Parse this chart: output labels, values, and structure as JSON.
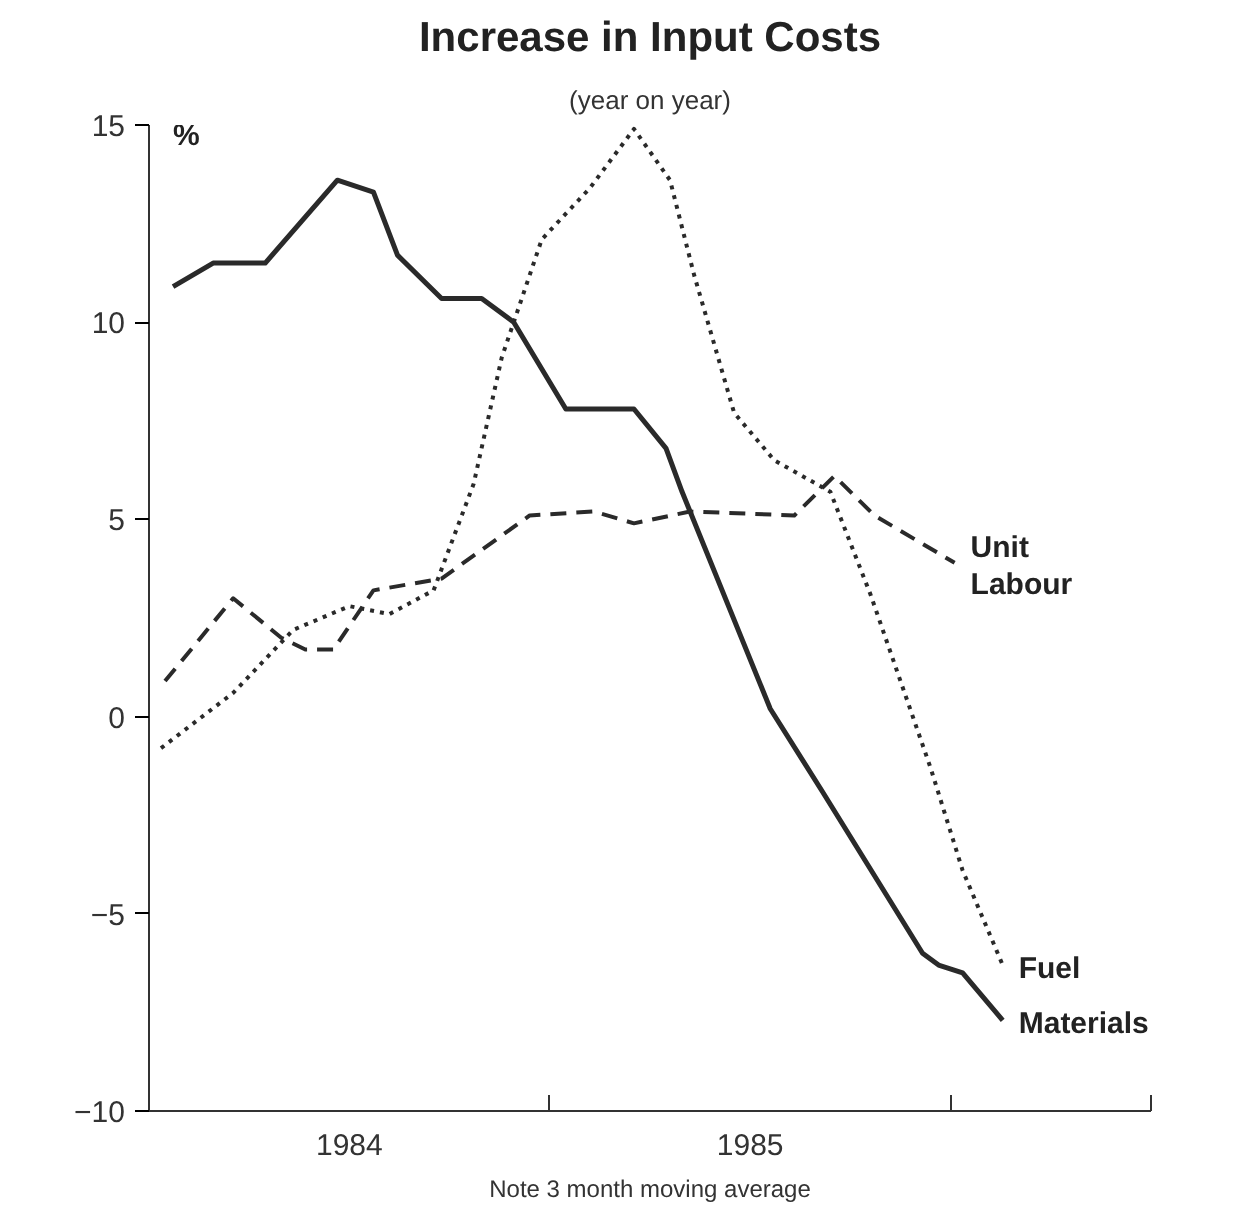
{
  "chart_data": {
    "type": "line",
    "title": "Increase in Input Costs",
    "subtitle": "(year on year)",
    "ylabel": "%",
    "annotations": [
      "Note 3 month moving average"
    ],
    "xlim": [
      1984,
      1986.5
    ],
    "xticks": [
      {
        "value": 1984,
        "label": null
      },
      {
        "value": 1984.5,
        "label": "1984"
      },
      {
        "value": 1985,
        "label": null
      },
      {
        "value": 1985.5,
        "label": "1985"
      },
      {
        "value": 1986,
        "label": null
      },
      {
        "value": 1986.5,
        "label": null
      }
    ],
    "ylim": [
      -10,
      15
    ],
    "yticks": [
      {
        "value": -10,
        "label": "−10"
      },
      {
        "value": -5,
        "label": "−5"
      },
      0,
      5,
      10,
      15
    ],
    "grid": false,
    "legend": false,
    "marker": "none",
    "series": [
      {
        "name": "Unit Labour",
        "color": "#2a2a2a",
        "line_style": "dashed",
        "x": [
          1984.04,
          1984.21,
          1984.33,
          1984.39,
          1984.46,
          1984.56,
          1984.73,
          1984.95,
          1985.11,
          1985.21,
          1985.35,
          1985.61,
          1985.71,
          1985.81,
          1986.01
        ],
        "values": [
          0.9,
          3.0,
          2.0,
          1.7,
          1.7,
          3.2,
          3.5,
          5.1,
          5.2,
          4.9,
          5.2,
          5.1,
          6.1,
          5.1,
          3.9
        ]
      },
      {
        "name": "Fuel",
        "color": "#2a2a2a",
        "line_style": "dotted",
        "x": [
          1984.03,
          1984.21,
          1984.36,
          1984.5,
          1984.6,
          1984.71,
          1984.81,
          1984.88,
          1984.98,
          1985.1,
          1985.21,
          1985.3,
          1985.36,
          1985.46,
          1985.56,
          1985.7,
          1985.8,
          1985.95,
          1986.03,
          1986.13
        ],
        "values": [
          -0.8,
          0.6,
          2.2,
          2.8,
          2.6,
          3.2,
          5.9,
          9.1,
          12.1,
          13.4,
          14.9,
          13.6,
          11.2,
          7.7,
          6.5,
          5.7,
          3.1,
          -1.3,
          -3.9,
          -6.3
        ]
      },
      {
        "name": "Materials",
        "color": "#2a2a2a",
        "line_style": "solid",
        "x": [
          1984.06,
          1984.16,
          1984.29,
          1984.47,
          1984.56,
          1984.62,
          1984.73,
          1984.83,
          1984.91,
          1985.04,
          1985.21,
          1985.29,
          1985.33,
          1985.55,
          1985.68,
          1985.93,
          1985.97,
          1986.03,
          1986.13
        ],
        "values": [
          10.9,
          11.5,
          11.5,
          13.6,
          13.3,
          11.7,
          10.6,
          10.6,
          10.0,
          7.8,
          7.8,
          6.8,
          5.7,
          0.2,
          -1.9,
          -6.0,
          -6.3,
          -6.5,
          -7.7
        ]
      }
    ]
  }
}
